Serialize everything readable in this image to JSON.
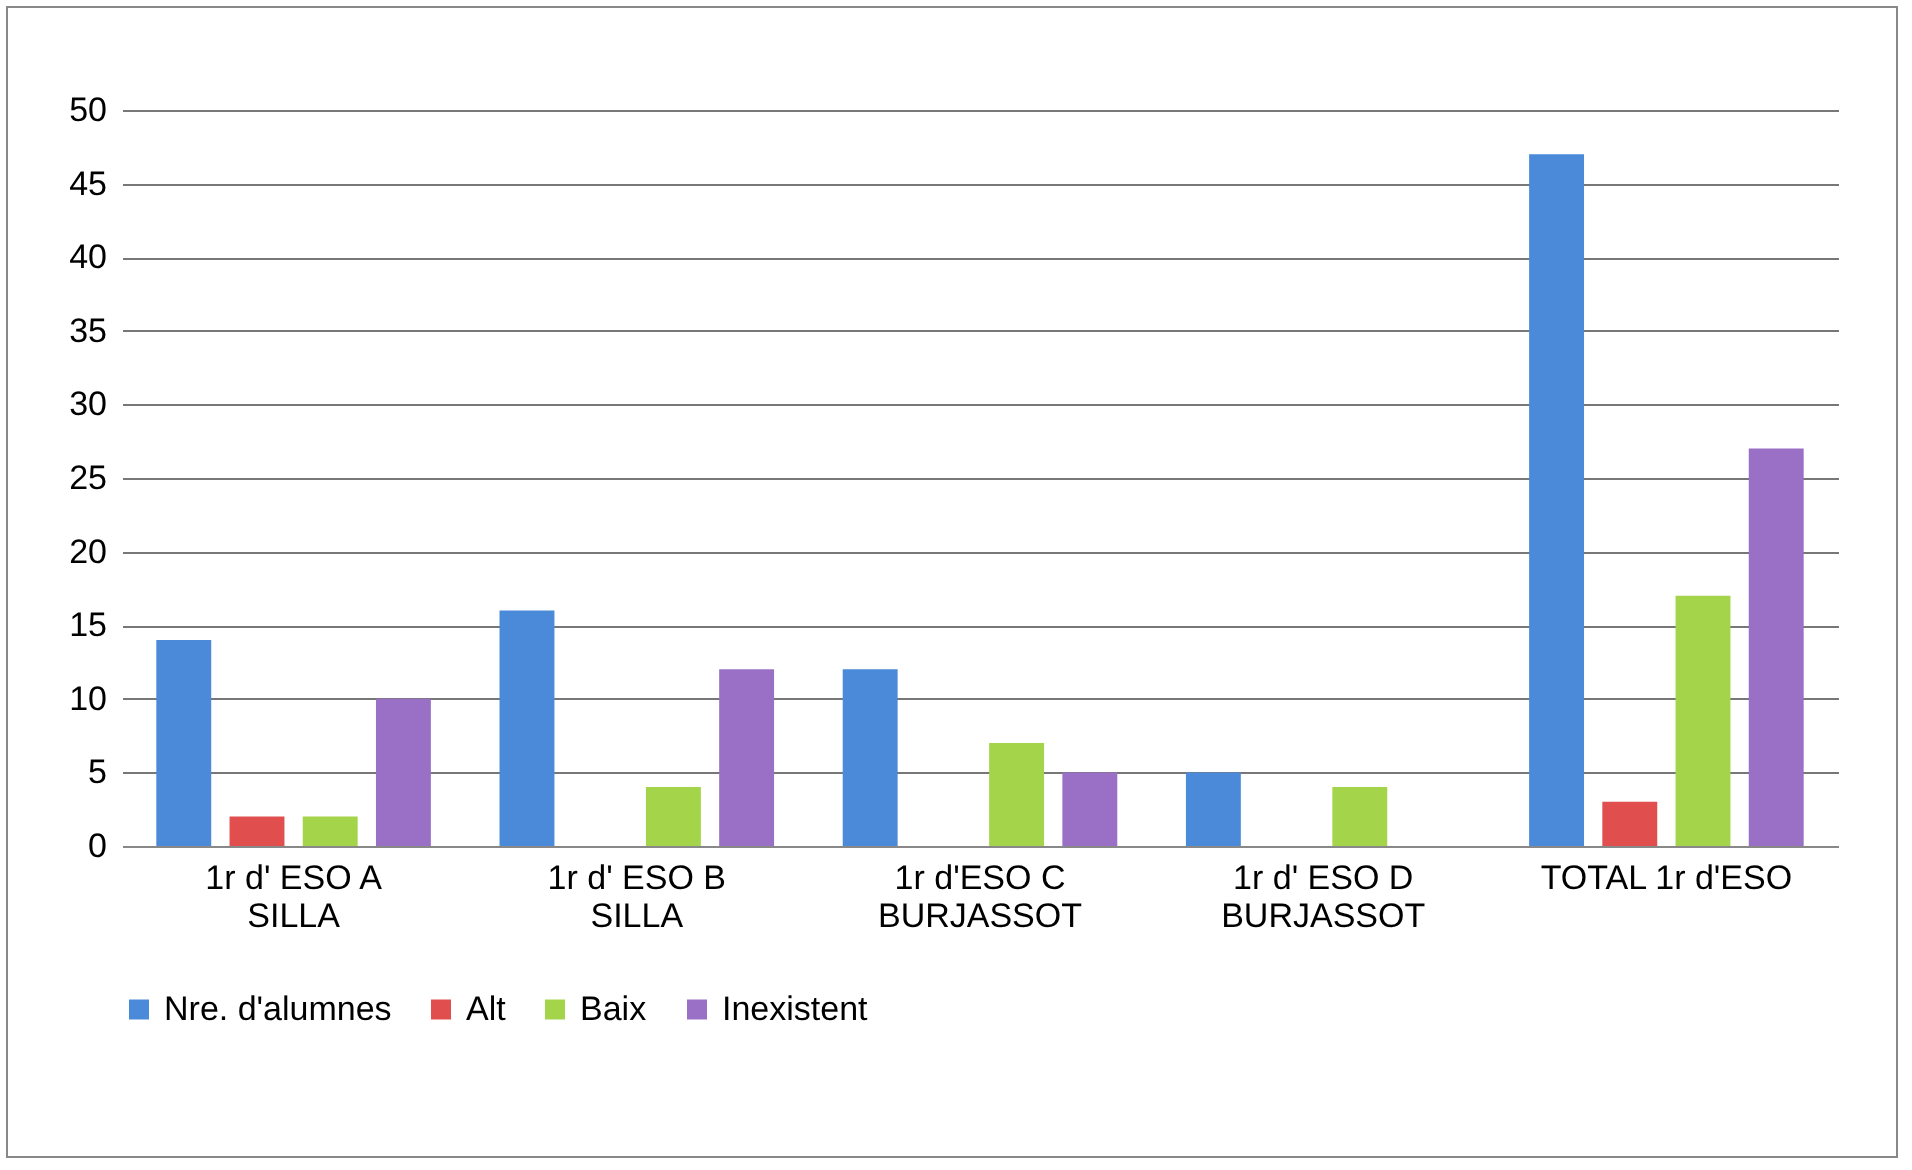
{
  "chart_data": {
    "type": "bar",
    "categories": [
      "1r d' ESO A SILLA",
      "1r d' ESO B SILLA",
      "1r d'ESO C BURJASSOT",
      "1r d' ESO D BURJASSOT",
      "TOTAL 1r d'ESO"
    ],
    "series": [
      {
        "name": "Nre. d'alumnes",
        "color": "#4a8ad8",
        "values": [
          14,
          16,
          12,
          5,
          47
        ]
      },
      {
        "name": "Alt",
        "color": "#e04e4e",
        "values": [
          2,
          0,
          0,
          0,
          3
        ]
      },
      {
        "name": "Baix",
        "color": "#a3d44a",
        "values": [
          2,
          4,
          7,
          4,
          17
        ]
      },
      {
        "name": "Inexistent",
        "color": "#9a70c6",
        "values": [
          10,
          12,
          5,
          0,
          27
        ]
      }
    ],
    "ylim": [
      0,
      50
    ],
    "yticks": [
      0,
      5,
      10,
      15,
      20,
      25,
      30,
      35,
      40,
      45,
      50
    ],
    "grid": "y",
    "legend": "bottom"
  }
}
